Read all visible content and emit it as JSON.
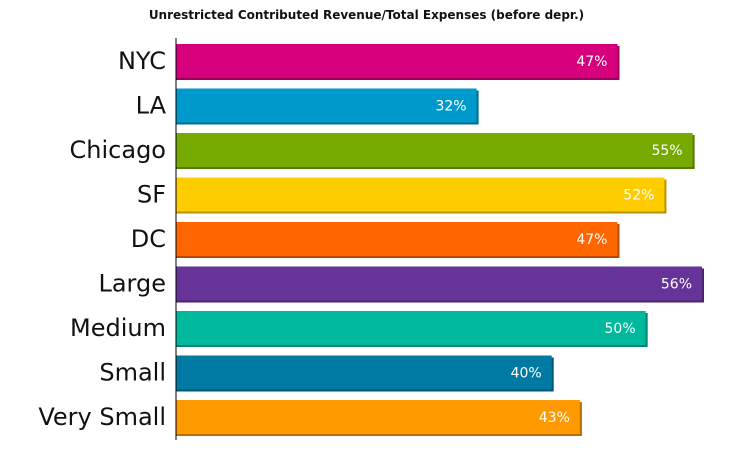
{
  "chart_data": {
    "type": "bar",
    "orientation": "horizontal",
    "title": "Unrestricted Contributed Revenue/Total Expenses (before depr.)",
    "categories": [
      "NYC",
      "LA",
      "Chicago",
      "SF",
      "DC",
      "Large",
      "Medium",
      "Small",
      "Very Small"
    ],
    "values": [
      47,
      32,
      55,
      52,
      47,
      56,
      50,
      40,
      43
    ],
    "value_labels": [
      "47%",
      "32%",
      "55%",
      "52%",
      "47%",
      "56%",
      "50%",
      "40%",
      "43%"
    ],
    "colors": [
      "#d6007d",
      "#0099cc",
      "#77aa00",
      "#ffcc00",
      "#ff6600",
      "#663399",
      "#00b89c",
      "#007aa3",
      "#ff9900"
    ],
    "xlim": [
      0,
      56
    ],
    "grid": false,
    "legend": "none"
  }
}
